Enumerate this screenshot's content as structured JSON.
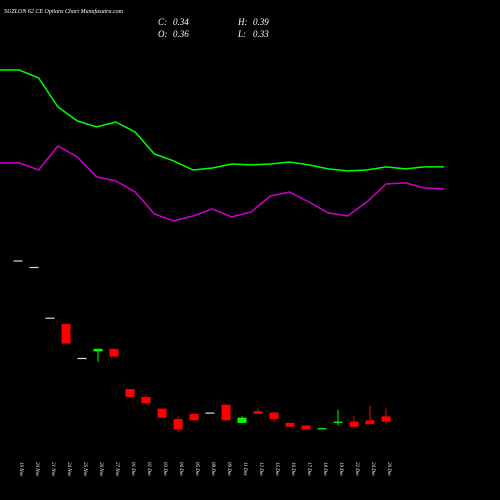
{
  "chart_data": {
    "type": "candlestick",
    "title": "SUZLON 62 CE Options Chart Munafasutra.com",
    "ohlc_header": [
      {
        "label": "C:",
        "value": 0.34
      },
      {
        "label": "H:",
        "value": 0.39
      },
      {
        "label": "O:",
        "value": 0.36
      },
      {
        "label": "L:",
        "value": 0.33
      }
    ],
    "categories": [
      "19 Nov",
      "20 Nov",
      "21 Nov",
      "24 Nov",
      "25 Nov",
      "26 Nov",
      "27 Nov",
      "01 Dec",
      "02 Dec",
      "03 Dec",
      "04 Dec",
      "05 Dec",
      "08 Dec",
      "09 Dec",
      "11 Dec",
      "12 Dec",
      "15 Dec",
      "16 Dec",
      "17 Dec",
      "18 Dec",
      "19 Dec",
      "22 Dec",
      "24 Dec",
      "26 Dec"
    ],
    "open": [
      0.96,
      0.935,
      0.74,
      0.715,
      0.585,
      0.61,
      0.62,
      0.465,
      0.435,
      0.39,
      0.35,
      0.37,
      0.375,
      0.405,
      0.335,
      0.38,
      0.375,
      0.335,
      0.325,
      0.31,
      0.335,
      0.34,
      0.345,
      0.36
    ],
    "high": [
      0.96,
      0.935,
      0.74,
      0.715,
      0.585,
      0.62,
      0.62,
      0.465,
      0.445,
      0.39,
      0.36,
      0.37,
      0.375,
      0.405,
      0.36,
      0.39,
      0.375,
      0.335,
      0.325,
      0.315,
      0.385,
      0.36,
      0.4,
      0.39
    ],
    "low": [
      0.96,
      0.935,
      0.74,
      0.64,
      0.585,
      0.57,
      0.59,
      0.435,
      0.41,
      0.355,
      0.3,
      0.345,
      0.375,
      0.345,
      0.335,
      0.37,
      0.34,
      0.32,
      0.31,
      0.31,
      0.325,
      0.32,
      0.33,
      0.33
    ],
    "close": [
      0.96,
      0.935,
      0.74,
      0.64,
      0.585,
      0.62,
      0.59,
      0.435,
      0.41,
      0.355,
      0.31,
      0.345,
      0.375,
      0.345,
      0.355,
      0.37,
      0.35,
      0.32,
      0.31,
      0.315,
      0.34,
      0.32,
      0.33,
      0.34
    ],
    "up_color": "#00ff00",
    "down_color": "#ff0000",
    "flat_color": "#dddddd",
    "ylim": [
      0.25,
      1.0
    ],
    "y2lim": [
      0.3,
      1.0
    ],
    "series": [
      {
        "color": "#00ff00",
        "axis": "y2",
        "values": [
          0.895,
          0.895,
          0.867,
          0.766,
          0.717,
          0.696,
          0.713,
          0.678,
          0.601,
          0.577,
          0.545,
          0.552,
          0.566,
          0.563,
          0.566,
          0.573,
          0.563,
          0.549,
          0.542,
          0.545,
          0.556,
          0.549,
          0.556,
          0.556
        ]
      },
      {
        "color": "#cc00cc",
        "axis": "y2",
        "values": [
          0.57,
          0.57,
          0.545,
          0.629,
          0.591,
          0.521,
          0.507,
          0.468,
          0.391,
          0.367,
          0.384,
          0.409,
          0.381,
          0.398,
          0.454,
          0.468,
          0.433,
          0.395,
          0.384,
          0.433,
          0.496,
          0.5,
          0.482,
          0.479
        ]
      }
    ]
  }
}
